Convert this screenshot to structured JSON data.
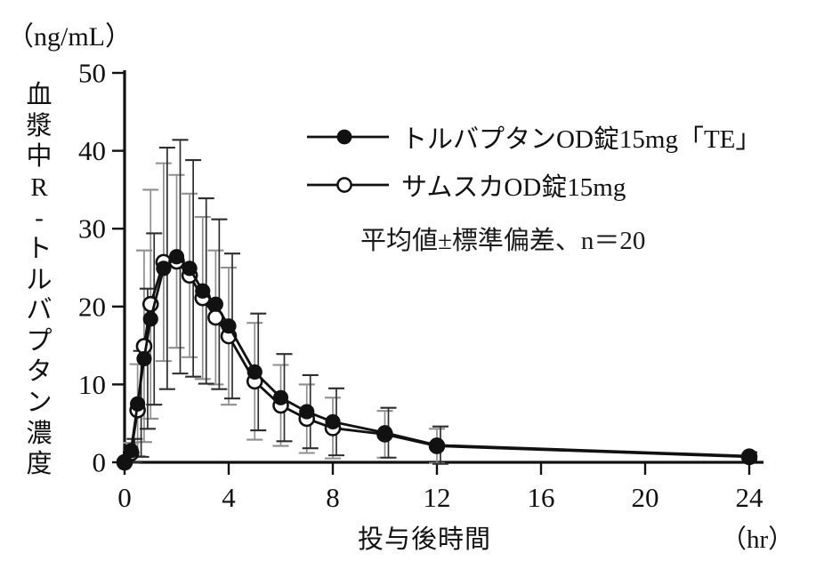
{
  "figure": {
    "y_unit": "（ng/mL）",
    "x_unit": "（hr）",
    "x_label": "投与後時間",
    "y_label": "血漿中R-トルバプタン濃度",
    "note": "平均値±標準偏差、n＝20"
  },
  "chart_data": {
    "type": "line",
    "title": "",
    "xlabel": "投与後時間",
    "ylabel": "血漿中R-トルバプタン濃度",
    "x_axis_unit": "（hr）",
    "y_axis_unit": "（ng/mL）",
    "note": "平均値±標準偏差、n＝20",
    "error_bars": "±SD",
    "grid": false,
    "legend_position": "top-center-inside",
    "xlim": [
      0,
      24
    ],
    "ylim": [
      0,
      50
    ],
    "x_ticks": [
      0,
      4,
      8,
      12,
      16,
      20,
      24
    ],
    "y_ticks": [
      0,
      10,
      20,
      30,
      40,
      50
    ],
    "x": [
      0,
      0.25,
      0.5,
      0.75,
      1,
      1.5,
      2,
      2.5,
      3,
      3.5,
      4,
      5,
      6,
      7,
      8,
      10,
      12,
      24
    ],
    "series": [
      {
        "name": "トルバプタンOD錠15mg「TE」",
        "marker": "filled-circle",
        "line_color": "#111111",
        "error_bar_color": "#2e2e2e",
        "values": [
          0,
          1.5,
          7.5,
          13.3,
          18.4,
          24.9,
          26.4,
          24.9,
          22.0,
          20.3,
          17.5,
          11.6,
          8.3,
          6.5,
          5.2,
          3.8,
          2.2,
          0.8
        ],
        "sd": [
          0,
          1.5,
          6.8,
          9.0,
          11.0,
          15.5,
          15.0,
          13.9,
          11.9,
          10.9,
          9.3,
          7.5,
          5.6,
          4.7,
          4.3,
          3.2,
          2.4,
          0.5
        ]
      },
      {
        "name": "サムスカOD錠15mg",
        "marker": "open-circle",
        "line_color": "#111111",
        "error_bar_color": "#8f8f8f",
        "values": [
          0,
          1.2,
          6.7,
          14.9,
          20.3,
          25.7,
          25.8,
          24.0,
          21.1,
          18.6,
          16.2,
          10.4,
          7.3,
          5.6,
          4.4,
          3.6,
          2.1,
          0.7
        ],
        "sd": [
          0,
          1.3,
          5.9,
          12.3,
          14.7,
          12.7,
          11.1,
          10.5,
          10.4,
          8.6,
          8.8,
          7.5,
          5.2,
          4.4,
          3.9,
          3.0,
          2.2,
          0.5
        ]
      }
    ]
  }
}
